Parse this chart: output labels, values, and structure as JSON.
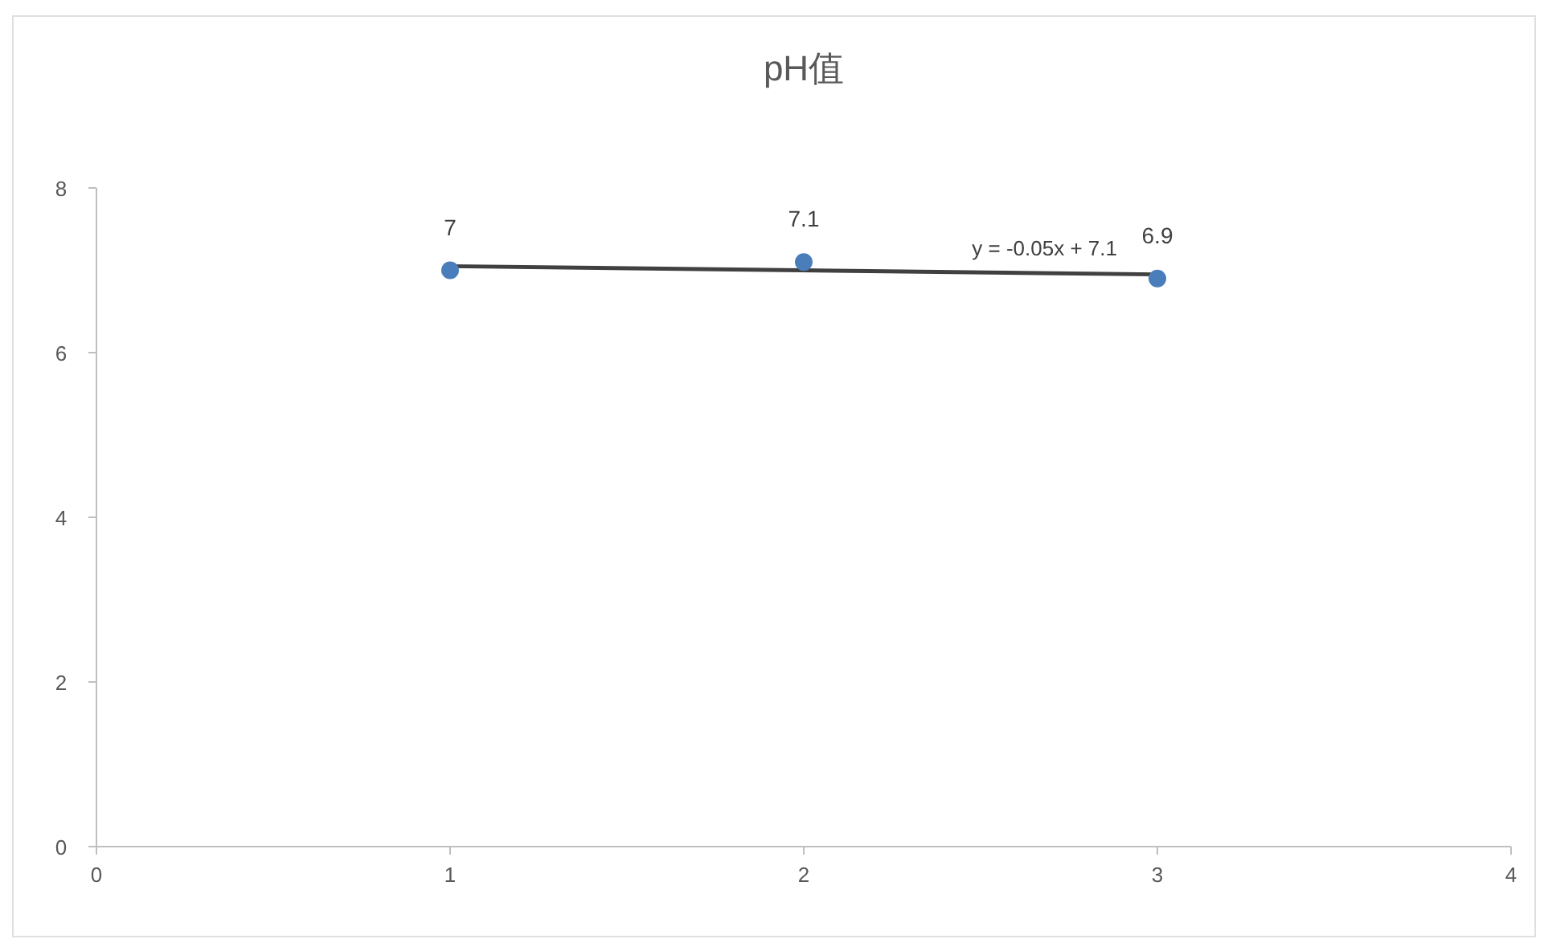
{
  "chart_data": {
    "type": "scatter",
    "title": "pH值",
    "x": [
      1,
      2,
      3
    ],
    "series": [
      {
        "type": "scatter",
        "color": "#4a7ebb",
        "values": [
          7,
          7.1,
          6.9
        ],
        "value_labels": [
          "7",
          "7.1",
          "6.9"
        ],
        "marker": "circle"
      },
      {
        "type": "line",
        "color": "#404040",
        "x": [
          1,
          3
        ],
        "values": [
          7.05,
          6.95
        ],
        "marker": "none",
        "line_style": "solid"
      }
    ],
    "annotations": [
      "y = -0.05x + 7.1"
    ],
    "xlim": [
      0,
      4
    ],
    "xticks": [
      0,
      1,
      2,
      3,
      4
    ],
    "ylim": [
      0,
      8
    ],
    "yticks": [
      0,
      2,
      4,
      6,
      8
    ],
    "grid": false
  }
}
